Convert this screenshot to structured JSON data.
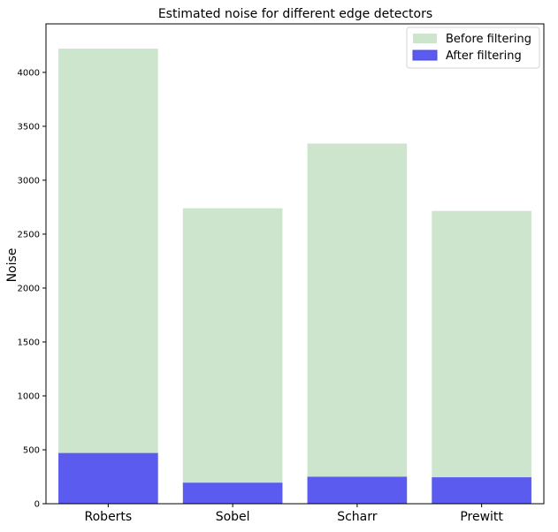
{
  "chart_data": {
    "type": "bar",
    "title": "Estimated noise for different edge detectors",
    "xlabel": "",
    "ylabel": "Noise",
    "categories": [
      "Roberts",
      "Sobel",
      "Scharr",
      "Prewitt"
    ],
    "ylim": [
      0,
      4450
    ],
    "yticks": [
      0,
      500,
      1000,
      1500,
      2000,
      2500,
      3000,
      3500,
      4000
    ],
    "grid": false,
    "legend_position": "top-right",
    "series": [
      {
        "name": "Before filtering",
        "values": [
          4220,
          2740,
          3340,
          2715
        ],
        "color": "#cde4cd"
      },
      {
        "name": "After filtering",
        "values": [
          470,
          195,
          250,
          245
        ],
        "color": "#5b5bef",
        "edge_color": "#4a4ae0"
      }
    ],
    "bar_overlay": true
  }
}
